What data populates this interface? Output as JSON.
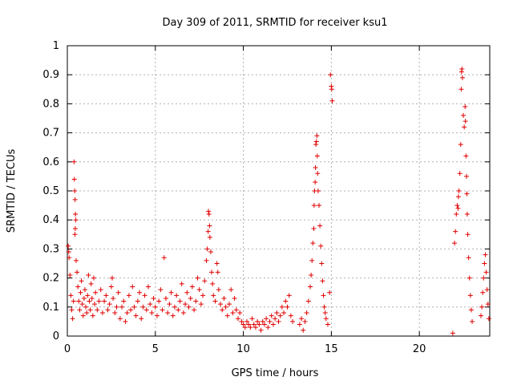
{
  "chart_data": {
    "type": "scatter",
    "title": "Day 309 of 2011, SRMTID for receiver ksu1",
    "xlabel": "GPS time / hours",
    "ylabel": "SRMTID / TECUs",
    "xlim": [
      0,
      24
    ],
    "ylim": [
      0,
      1
    ],
    "x_ticks": [
      0,
      5,
      10,
      15,
      20
    ],
    "y_ticks": [
      0,
      0.1,
      0.2,
      0.3,
      0.4,
      0.5,
      0.6,
      0.7,
      0.8,
      0.9,
      1
    ],
    "x_tick_labels": [
      "0",
      "5",
      "10",
      "15",
      "20"
    ],
    "y_tick_labels": [
      "0",
      "0.1",
      "0.2",
      "0.3",
      "0.4",
      "0.5",
      "0.6",
      "0.7",
      "0.8",
      "0.9",
      "1"
    ],
    "grid": true,
    "marker": "+",
    "color": "#e00000",
    "series": [
      {
        "name": "SRMTID",
        "points": [
          [
            0.05,
            0.31
          ],
          [
            0.08,
            0.29
          ],
          [
            0.1,
            0.27
          ],
          [
            0.15,
            0.21
          ],
          [
            0.2,
            0.14
          ],
          [
            0.25,
            0.09
          ],
          [
            0.3,
            0.06
          ],
          [
            0.35,
            0.12
          ],
          [
            0.38,
            0.6
          ],
          [
            0.4,
            0.54
          ],
          [
            0.42,
            0.5
          ],
          [
            0.44,
            0.47
          ],
          [
            0.46,
            0.42
          ],
          [
            0.48,
            0.4
          ],
          [
            0.45,
            0.37
          ],
          [
            0.43,
            0.35
          ],
          [
            0.5,
            0.26
          ],
          [
            0.55,
            0.22
          ],
          [
            0.6,
            0.17
          ],
          [
            0.65,
            0.12
          ],
          [
            0.7,
            0.09
          ],
          [
            0.75,
            0.15
          ],
          [
            0.8,
            0.19
          ],
          [
            0.85,
            0.11
          ],
          [
            0.9,
            0.07
          ],
          [
            0.95,
            0.13
          ],
          [
            1.0,
            0.16
          ],
          [
            1.05,
            0.1
          ],
          [
            1.1,
            0.08
          ],
          [
            1.15,
            0.14
          ],
          [
            1.2,
            0.21
          ],
          [
            1.25,
            0.12
          ],
          [
            1.3,
            0.09
          ],
          [
            1.35,
            0.18
          ],
          [
            1.4,
            0.13
          ],
          [
            1.45,
            0.07
          ],
          [
            1.5,
            0.2
          ],
          [
            1.55,
            0.11
          ],
          [
            1.6,
            0.15
          ],
          [
            1.7,
            0.09
          ],
          [
            1.8,
            0.12
          ],
          [
            1.9,
            0.16
          ],
          [
            2.0,
            0.08
          ],
          [
            2.1,
            0.12
          ],
          [
            2.2,
            0.14
          ],
          [
            2.3,
            0.09
          ],
          [
            2.4,
            0.11
          ],
          [
            2.5,
            0.17
          ],
          [
            2.55,
            0.2
          ],
          [
            2.6,
            0.13
          ],
          [
            2.7,
            0.08
          ],
          [
            2.8,
            0.1
          ],
          [
            2.9,
            0.15
          ],
          [
            3.0,
            0.06
          ],
          [
            3.1,
            0.1
          ],
          [
            3.2,
            0.12
          ],
          [
            3.3,
            0.05
          ],
          [
            3.4,
            0.08
          ],
          [
            3.5,
            0.14
          ],
          [
            3.6,
            0.09
          ],
          [
            3.7,
            0.17
          ],
          [
            3.8,
            0.1
          ],
          [
            3.9,
            0.07
          ],
          [
            4.0,
            0.12
          ],
          [
            4.1,
            0.15
          ],
          [
            4.2,
            0.06
          ],
          [
            4.3,
            0.1
          ],
          [
            4.4,
            0.14
          ],
          [
            4.5,
            0.09
          ],
          [
            4.6,
            0.17
          ],
          [
            4.7,
            0.11
          ],
          [
            4.8,
            0.08
          ],
          [
            4.9,
            0.13
          ],
          [
            5.0,
            0.1
          ],
          [
            5.1,
            0.07
          ],
          [
            5.2,
            0.12
          ],
          [
            5.3,
            0.16
          ],
          [
            5.4,
            0.09
          ],
          [
            5.5,
            0.27
          ],
          [
            5.6,
            0.13
          ],
          [
            5.7,
            0.08
          ],
          [
            5.8,
            0.11
          ],
          [
            5.9,
            0.15
          ],
          [
            6.0,
            0.07
          ],
          [
            6.1,
            0.1
          ],
          [
            6.2,
            0.14
          ],
          [
            6.3,
            0.09
          ],
          [
            6.4,
            0.12
          ],
          [
            6.5,
            0.18
          ],
          [
            6.6,
            0.08
          ],
          [
            6.7,
            0.11
          ],
          [
            6.8,
            0.15
          ],
          [
            6.9,
            0.1
          ],
          [
            7.0,
            0.13
          ],
          [
            7.1,
            0.17
          ],
          [
            7.2,
            0.09
          ],
          [
            7.3,
            0.12
          ],
          [
            7.4,
            0.2
          ],
          [
            7.5,
            0.16
          ],
          [
            7.6,
            0.11
          ],
          [
            7.7,
            0.14
          ],
          [
            7.8,
            0.19
          ],
          [
            7.9,
            0.26
          ],
          [
            7.95,
            0.3
          ],
          [
            8.0,
            0.36
          ],
          [
            8.02,
            0.43
          ],
          [
            8.05,
            0.42
          ],
          [
            8.08,
            0.38
          ],
          [
            8.1,
            0.34
          ],
          [
            8.15,
            0.29
          ],
          [
            8.2,
            0.22
          ],
          [
            8.25,
            0.18
          ],
          [
            8.3,
            0.14
          ],
          [
            8.4,
            0.12
          ],
          [
            8.5,
            0.25
          ],
          [
            8.55,
            0.22
          ],
          [
            8.6,
            0.16
          ],
          [
            8.7,
            0.11
          ],
          [
            8.8,
            0.09
          ],
          [
            8.9,
            0.13
          ],
          [
            9.0,
            0.1
          ],
          [
            9.1,
            0.07
          ],
          [
            9.2,
            0.11
          ],
          [
            9.3,
            0.16
          ],
          [
            9.4,
            0.08
          ],
          [
            9.5,
            0.13
          ],
          [
            9.6,
            0.09
          ],
          [
            9.7,
            0.06
          ],
          [
            9.8,
            0.08
          ],
          [
            9.9,
            0.05
          ],
          [
            10.0,
            0.04
          ],
          [
            10.1,
            0.03
          ],
          [
            10.2,
            0.05
          ],
          [
            10.3,
            0.04
          ],
          [
            10.4,
            0.03
          ],
          [
            10.5,
            0.06
          ],
          [
            10.6,
            0.04
          ],
          [
            10.7,
            0.03
          ],
          [
            10.8,
            0.05
          ],
          [
            10.9,
            0.04
          ],
          [
            11.0,
            0.02
          ],
          [
            11.1,
            0.05
          ],
          [
            11.2,
            0.04
          ],
          [
            11.3,
            0.06
          ],
          [
            11.4,
            0.03
          ],
          [
            11.5,
            0.05
          ],
          [
            11.6,
            0.07
          ],
          [
            11.7,
            0.04
          ],
          [
            11.8,
            0.06
          ],
          [
            11.9,
            0.08
          ],
          [
            12.0,
            0.05
          ],
          [
            12.1,
            0.07
          ],
          [
            12.2,
            0.1
          ],
          [
            12.3,
            0.08
          ],
          [
            12.4,
            0.12
          ],
          [
            12.5,
            0.1
          ],
          [
            12.6,
            0.14
          ],
          [
            12.7,
            0.07
          ],
          [
            12.8,
            0.05
          ],
          [
            13.2,
            0.04
          ],
          [
            13.3,
            0.06
          ],
          [
            13.4,
            0.02
          ],
          [
            13.5,
            0.05
          ],
          [
            13.6,
            0.08
          ],
          [
            13.7,
            0.12
          ],
          [
            13.8,
            0.17
          ],
          [
            13.85,
            0.21
          ],
          [
            13.9,
            0.26
          ],
          [
            13.95,
            0.32
          ],
          [
            14.0,
            0.37
          ],
          [
            14.02,
            0.45
          ],
          [
            14.05,
            0.5
          ],
          [
            14.08,
            0.53
          ],
          [
            14.1,
            0.58
          ],
          [
            14.12,
            0.66
          ],
          [
            14.15,
            0.67
          ],
          [
            14.18,
            0.69
          ],
          [
            14.2,
            0.62
          ],
          [
            14.22,
            0.56
          ],
          [
            14.25,
            0.5
          ],
          [
            14.3,
            0.45
          ],
          [
            14.35,
            0.38
          ],
          [
            14.4,
            0.31
          ],
          [
            14.45,
            0.25
          ],
          [
            14.5,
            0.19
          ],
          [
            14.55,
            0.14
          ],
          [
            14.6,
            0.1
          ],
          [
            14.65,
            0.08
          ],
          [
            14.7,
            0.06
          ],
          [
            14.8,
            0.04
          ],
          [
            14.9,
            0.15
          ],
          [
            14.95,
            0.9
          ],
          [
            15.0,
            0.86
          ],
          [
            15.02,
            0.85
          ],
          [
            15.05,
            0.81
          ],
          [
            21.9,
            0.01
          ],
          [
            22.0,
            0.32
          ],
          [
            22.05,
            0.36
          ],
          [
            22.1,
            0.42
          ],
          [
            22.15,
            0.45
          ],
          [
            22.2,
            0.44
          ],
          [
            22.22,
            0.48
          ],
          [
            22.25,
            0.5
          ],
          [
            22.3,
            0.56
          ],
          [
            22.35,
            0.66
          ],
          [
            22.38,
            0.85
          ],
          [
            22.4,
            0.91
          ],
          [
            22.42,
            0.92
          ],
          [
            22.45,
            0.89
          ],
          [
            22.5,
            0.76
          ],
          [
            22.55,
            0.72
          ],
          [
            22.6,
            0.79
          ],
          [
            22.62,
            0.74
          ],
          [
            22.65,
            0.62
          ],
          [
            22.68,
            0.55
          ],
          [
            22.7,
            0.49
          ],
          [
            22.72,
            0.42
          ],
          [
            22.75,
            0.35
          ],
          [
            22.8,
            0.27
          ],
          [
            22.85,
            0.2
          ],
          [
            22.9,
            0.14
          ],
          [
            22.95,
            0.09
          ],
          [
            23.0,
            0.05
          ],
          [
            23.5,
            0.07
          ],
          [
            23.55,
            0.1
          ],
          [
            23.6,
            0.15
          ],
          [
            23.65,
            0.2
          ],
          [
            23.7,
            0.25
          ],
          [
            23.75,
            0.28
          ],
          [
            23.8,
            0.22
          ],
          [
            23.85,
            0.16
          ],
          [
            23.9,
            0.11
          ],
          [
            23.95,
            0.06
          ]
        ]
      }
    ]
  }
}
